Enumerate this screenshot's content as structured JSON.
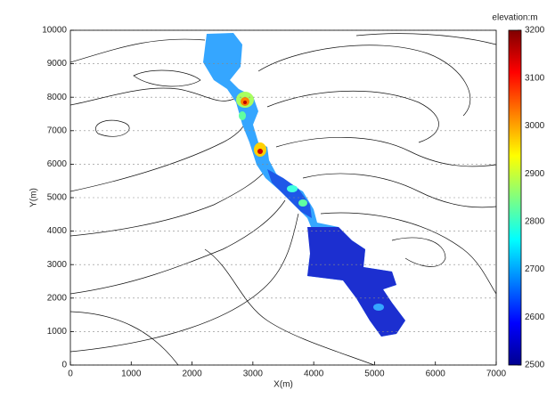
{
  "chart_data": {
    "type": "contour",
    "xlabel": "X(m)",
    "ylabel": "Y(m)",
    "xlim": [
      0,
      7000
    ],
    "ylim": [
      0,
      10000
    ],
    "xticks": [
      0,
      1000,
      2000,
      3000,
      4000,
      5000,
      6000,
      7000
    ],
    "yticks": [
      0,
      1000,
      2000,
      3000,
      4000,
      5000,
      6000,
      7000,
      8000,
      9000,
      10000
    ],
    "grid": true,
    "colorbar": {
      "label": "elevation:m",
      "lim": [
        2500,
        3200
      ],
      "ticks": [
        2500,
        2600,
        2700,
        2800,
        2900,
        3000,
        3100,
        3200
      ],
      "colors": [
        "#00008f",
        "#0000ff",
        "#0080ff",
        "#00ffff",
        "#80ff80",
        "#ffff00",
        "#ff8000",
        "#ff0000",
        "#800000"
      ]
    }
  }
}
